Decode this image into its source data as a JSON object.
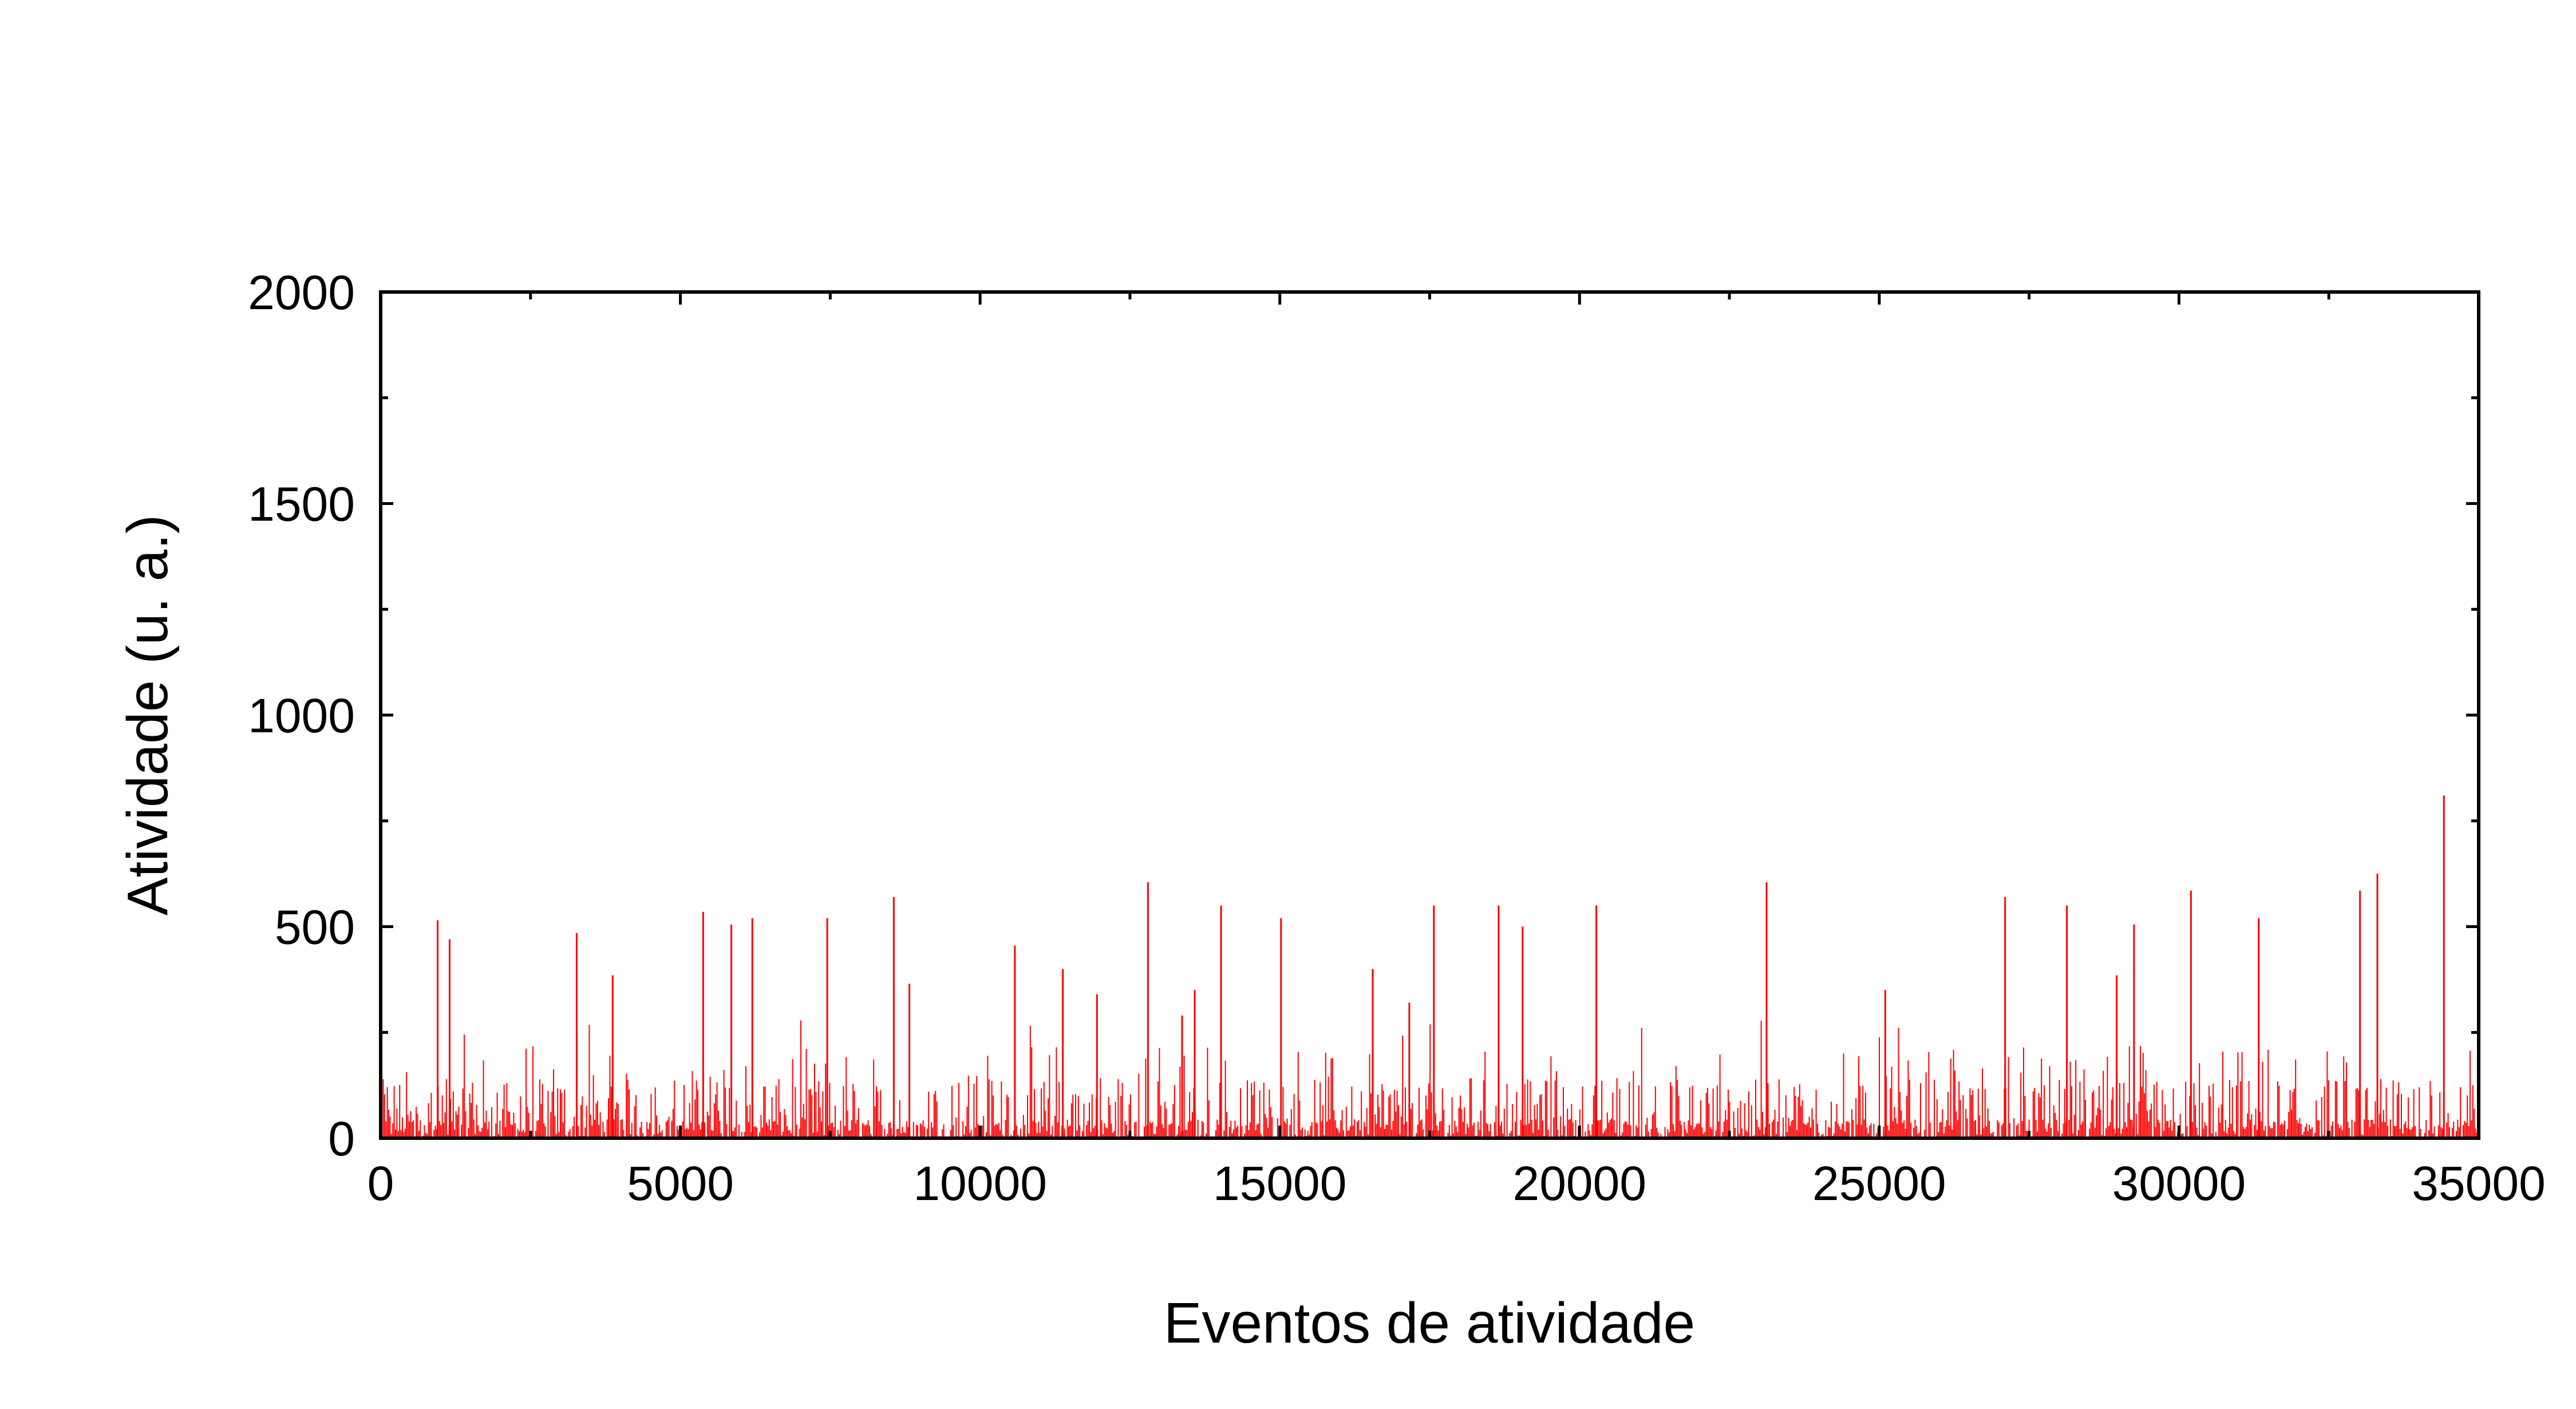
{
  "chart_data": {
    "type": "bar",
    "title": "",
    "xlabel": "Eventos de atividade",
    "ylabel": "Atividade (u. a.)",
    "xlim": [
      0,
      35000
    ],
    "ylim": [
      0,
      2000
    ],
    "x_major_ticks": [
      0,
      5000,
      10000,
      15000,
      20000,
      25000,
      30000,
      35000
    ],
    "x_tick_labels": [
      "0",
      "5000",
      "10000",
      "15000",
      "20000",
      "25000",
      "30000",
      "35000"
    ],
    "y_major_ticks": [
      0,
      500,
      1000,
      1500,
      2000
    ],
    "y_tick_labels": [
      "0",
      "500",
      "1000",
      "1500",
      "2000"
    ],
    "x_minor_ticks": [
      2500,
      7500,
      12500,
      17500,
      22500,
      27500,
      32500
    ],
    "y_minor_ticks": [
      250,
      750,
      1250,
      1750
    ],
    "grid": false,
    "legend": false,
    "series": [
      {
        "color": "#ff0000",
        "x": [
          950,
          1150,
          3270,
          3870,
          5380,
          5850,
          6200,
          7450,
          8560,
          8820,
          10580,
          11380,
          11950,
          12800,
          13370,
          13580,
          14020,
          15020,
          16550,
          17160,
          17570,
          18650,
          19050,
          20280,
          23120,
          25100,
          27100,
          28130,
          28960,
          29250,
          30200,
          31330,
          33020,
          33310,
          34420
        ],
        "values": [
          515,
          470,
          485,
          385,
          535,
          505,
          520,
          520,
          570,
          365,
          455,
          400,
          340,
          605,
          290,
          350,
          550,
          520,
          400,
          320,
          550,
          550,
          500,
          550,
          605,
          350,
          570,
          550,
          385,
          505,
          585,
          520,
          585,
          625,
          810
        ]
      }
    ]
  }
}
